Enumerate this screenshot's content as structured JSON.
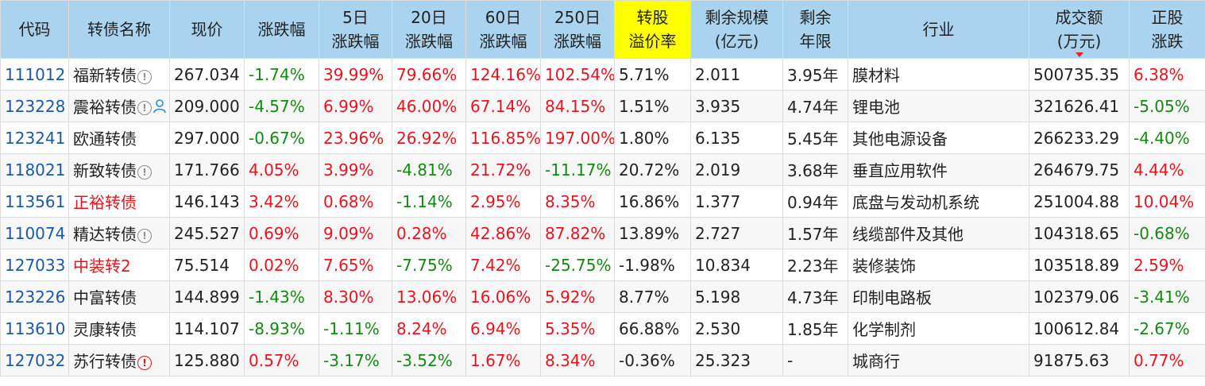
{
  "columns": [
    {
      "key": "code",
      "label": [
        "代码"
      ]
    },
    {
      "key": "name",
      "label": [
        "转债名称"
      ]
    },
    {
      "key": "price",
      "label": [
        "现价"
      ]
    },
    {
      "key": "change",
      "label": [
        "涨跌幅"
      ]
    },
    {
      "key": "d5",
      "label": [
        "5日",
        "涨跌幅"
      ]
    },
    {
      "key": "d20",
      "label": [
        "20日",
        "涨跌幅"
      ]
    },
    {
      "key": "d60",
      "label": [
        "60日",
        "涨跌幅"
      ]
    },
    {
      "key": "d250",
      "label": [
        "250日",
        "涨跌幅"
      ]
    },
    {
      "key": "premium",
      "label": [
        "转股",
        "溢价率"
      ],
      "highlight": "#ffff00"
    },
    {
      "key": "scale",
      "label": [
        "剩余规模",
        "(亿元)"
      ]
    },
    {
      "key": "years",
      "label": [
        "剩余",
        "年限"
      ]
    },
    {
      "key": "industry",
      "label": [
        "行业"
      ]
    },
    {
      "key": "turnover",
      "label": [
        "成交额",
        "(万元)"
      ],
      "sorted": "desc"
    },
    {
      "key": "stock_change",
      "label": [
        "正股",
        "涨跌"
      ]
    }
  ],
  "rows": [
    {
      "code": "111012",
      "name": "福新转债",
      "icons": [
        "info-icon"
      ],
      "price": "267.034",
      "change": "-1.74%",
      "d5": "39.99%",
      "d20": "79.66%",
      "d60": "124.16%",
      "d250": "102.54%",
      "premium": "5.71%",
      "scale": "2.011",
      "years": "3.95年",
      "industry": "膜材料",
      "turnover": "500735.35",
      "stock_change": "6.38%"
    },
    {
      "code": "123228",
      "name": "震裕转债",
      "icons": [
        "info-icon",
        "person-icon"
      ],
      "price": "209.000",
      "change": "-4.57%",
      "d5": "6.99%",
      "d20": "46.00%",
      "d60": "67.14%",
      "d250": "84.15%",
      "premium": "1.51%",
      "scale": "3.935",
      "years": "4.74年",
      "industry": "锂电池",
      "turnover": "321626.41",
      "stock_change": "-5.05%"
    },
    {
      "code": "123241",
      "name": "欧通转债",
      "icons": [],
      "price": "297.000",
      "change": "-0.67%",
      "d5": "23.96%",
      "d20": "26.92%",
      "d60": "116.85%",
      "d250": "197.00%",
      "premium": "1.80%",
      "scale": "6.135",
      "years": "5.45年",
      "industry": "其他电源设备",
      "turnover": "266233.29",
      "stock_change": "-4.40%"
    },
    {
      "code": "118021",
      "name": "新致转债",
      "icons": [
        "info-icon"
      ],
      "price": "171.766",
      "change": "4.05%",
      "d5": "3.99%",
      "d20": "-4.81%",
      "d60": "21.72%",
      "d250": "-11.17%",
      "premium": "20.72%",
      "scale": "2.019",
      "years": "3.68年",
      "industry": "垂直应用软件",
      "turnover": "264679.75",
      "stock_change": "4.44%"
    },
    {
      "code": "113561",
      "name": "正裕转债",
      "name_red": true,
      "icons": [],
      "price": "146.143",
      "change": "3.42%",
      "d5": "0.68%",
      "d20": "-1.14%",
      "d60": "2.95%",
      "d250": "8.35%",
      "premium": "16.86%",
      "scale": "1.377",
      "years": "0.94年",
      "industry": "底盘与发动机系统",
      "turnover": "251004.88",
      "stock_change": "10.04%"
    },
    {
      "code": "110074",
      "name": "精达转债",
      "icons": [
        "info-icon"
      ],
      "price": "245.527",
      "change": "0.69%",
      "d5": "9.09%",
      "d20": "0.28%",
      "d60": "42.86%",
      "d250": "87.82%",
      "premium": "13.89%",
      "scale": "2.727",
      "years": "1.57年",
      "industry": "线缆部件及其他",
      "turnover": "104318.65",
      "stock_change": "-0.68%"
    },
    {
      "code": "127033",
      "name": "中装转2",
      "name_red": true,
      "icons": [],
      "price": "75.514",
      "change": "0.02%",
      "d5": "7.65%",
      "d20": "-7.75%",
      "d60": "7.42%",
      "d250": "-25.75%",
      "premium": "-1.98%",
      "scale": "10.834",
      "years": "2.23年",
      "industry": "装修装饰",
      "turnover": "103518.89",
      "stock_change": "2.59%"
    },
    {
      "code": "123226",
      "name": "中富转债",
      "icons": [],
      "price": "144.899",
      "change": "-1.43%",
      "d5": "8.30%",
      "d20": "13.06%",
      "d60": "16.06%",
      "d250": "5.92%",
      "premium": "8.77%",
      "scale": "5.198",
      "years": "4.73年",
      "industry": "印制电路板",
      "turnover": "102379.06",
      "stock_change": "-3.41%"
    },
    {
      "code": "113610",
      "name": "灵康转债",
      "icons": [],
      "price": "114.107",
      "change": "-8.93%",
      "d5": "-1.11%",
      "d20": "8.24%",
      "d60": "6.94%",
      "d250": "5.35%",
      "premium": "66.88%",
      "scale": "2.530",
      "years": "1.85年",
      "industry": "化学制剂",
      "turnover": "100612.84",
      "stock_change": "-2.67%"
    },
    {
      "code": "127032",
      "name": "苏行转债",
      "icons": [
        "alert-icon"
      ],
      "price": "125.880",
      "change": "0.57%",
      "d5": "-3.17%",
      "d20": "-3.52%",
      "d60": "1.67%",
      "d250": "8.34%",
      "premium": "-0.36%",
      "scale": "25.323",
      "years": "-",
      "industry": "城商行",
      "turnover": "91875.63",
      "stock_change": "0.77%"
    }
  ],
  "colors": {
    "header_bg": "#a9d3ef",
    "highlight": "#ffff00",
    "up": "#e8141d",
    "down": "#118a11",
    "code": "#1a5aa6"
  }
}
